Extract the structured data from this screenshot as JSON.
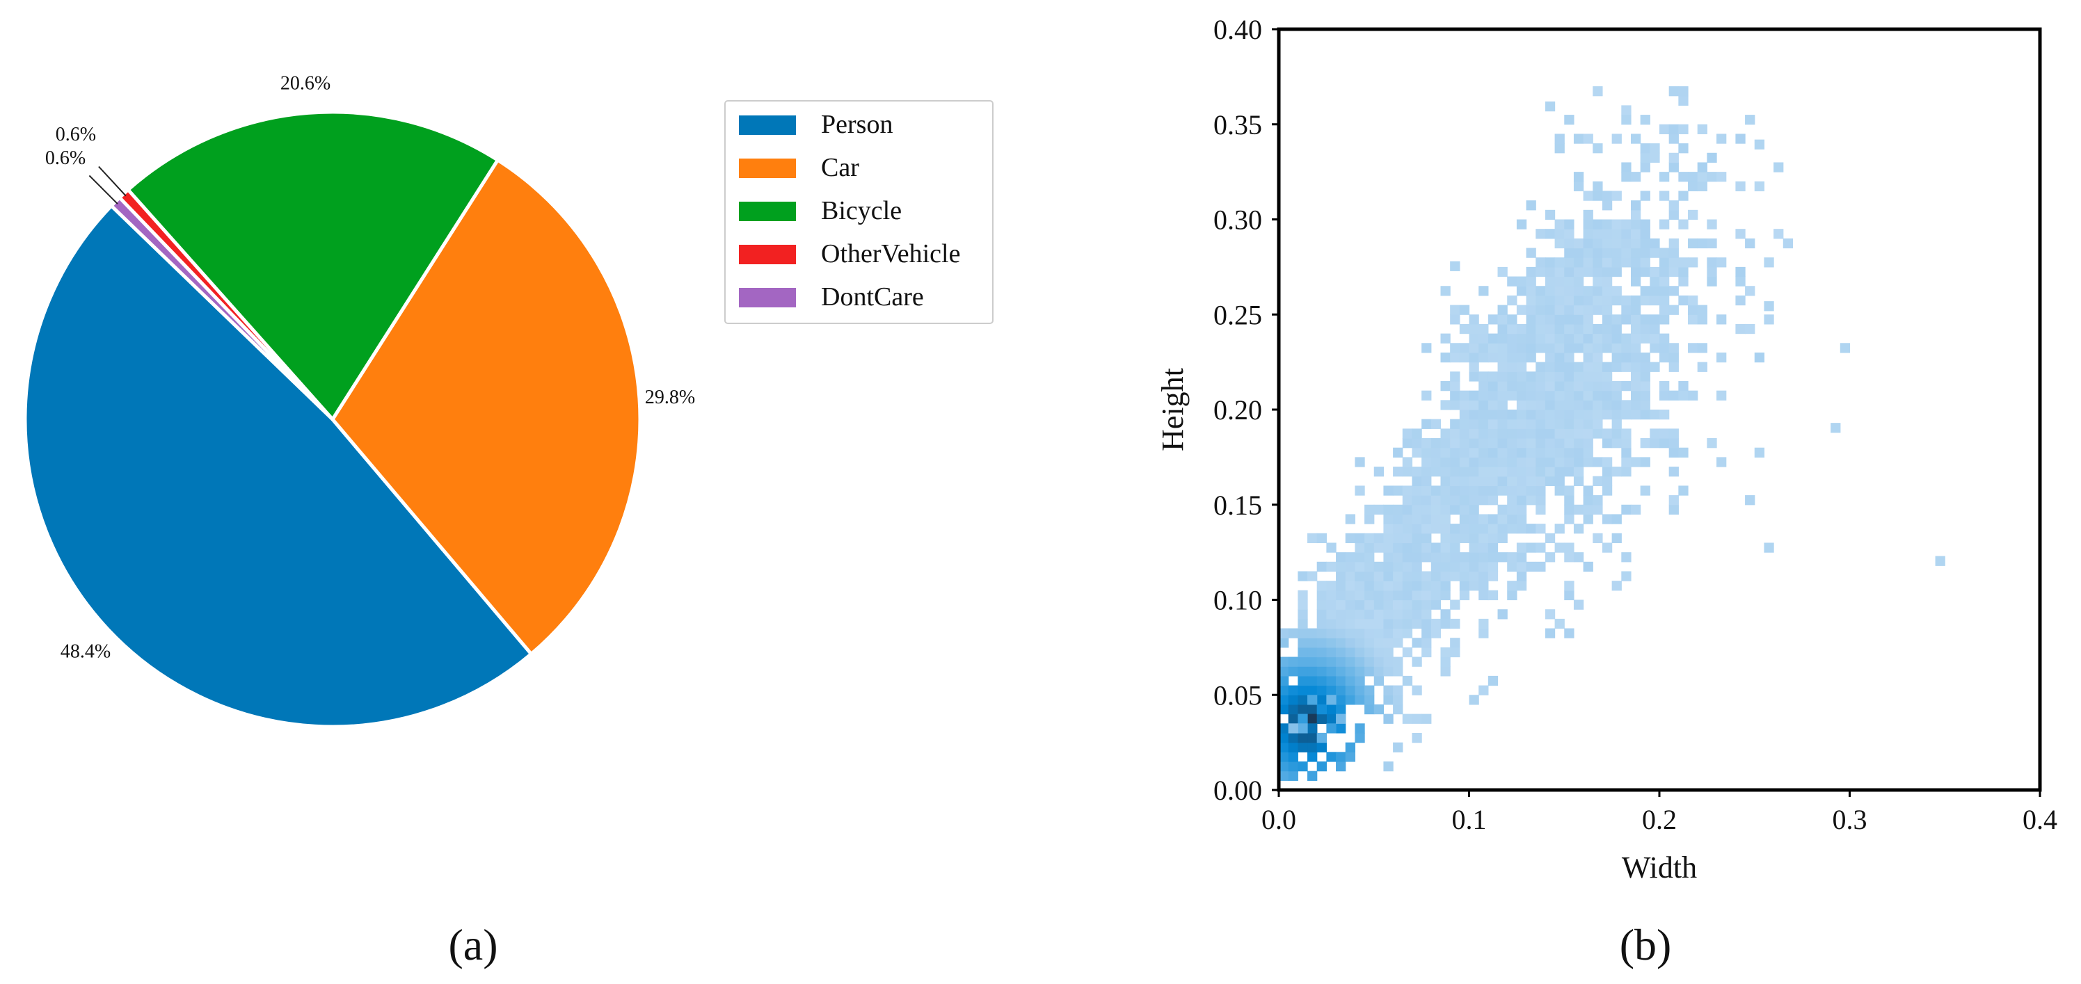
{
  "chart_data": [
    {
      "type": "pie",
      "panel_label": "(a)",
      "title": "",
      "categories": [
        "Person",
        "Car",
        "Bicycle",
        "OtherVehicle",
        "DontCare"
      ],
      "values": [
        48.4,
        29.8,
        20.6,
        0.6,
        0.6
      ],
      "value_labels": [
        "48.4%",
        "29.8%",
        "20.6%",
        "0.6%",
        "0.6%"
      ],
      "colors": [
        "#0077b8",
        "#ff7f0e",
        "#00a01e",
        "#f22121",
        "#a366c2"
      ],
      "start_angle_deg": 136,
      "direction": "counterclockwise",
      "legend": {
        "placement": "right",
        "entries": [
          "Person",
          "Car",
          "Bicycle",
          "OtherVehicle",
          "DontCare"
        ]
      }
    },
    {
      "type": "heatmap",
      "panel_label": "(b)",
      "title": "",
      "xlabel": "Width",
      "ylabel": "Height",
      "xlim": [
        0.0,
        0.4
      ],
      "ylim": [
        0.0,
        0.4
      ],
      "xticks": [
        "0.0",
        "0.1",
        "0.2",
        "0.3",
        "0.4"
      ],
      "yticks": [
        "0.00",
        "0.05",
        "0.10",
        "0.15",
        "0.20",
        "0.25",
        "0.30",
        "0.35",
        "0.40"
      ],
      "bin_size": 0.005,
      "density_center": [
        0.015,
        0.035
      ],
      "description": "2D histogram of bounding-box width vs height; counts concentrated near (0.015, 0.035), spreading along a positive diagonal up to about width 0.25 / height 0.35",
      "outliers": [
        [
          0.345,
          0.118
        ],
        [
          0.255,
          0.125
        ],
        [
          0.295,
          0.23
        ],
        [
          0.29,
          0.188
        ],
        [
          0.25,
          0.175
        ],
        [
          0.255,
          0.252
        ],
        [
          0.14,
          0.357
        ],
        [
          0.245,
          0.35
        ],
        [
          0.18,
          0.35
        ],
        [
          0.25,
          0.337
        ],
        [
          0.26,
          0.325
        ],
        [
          0.09,
          0.273
        ],
        [
          0.085,
          0.26
        ]
      ]
    }
  ]
}
